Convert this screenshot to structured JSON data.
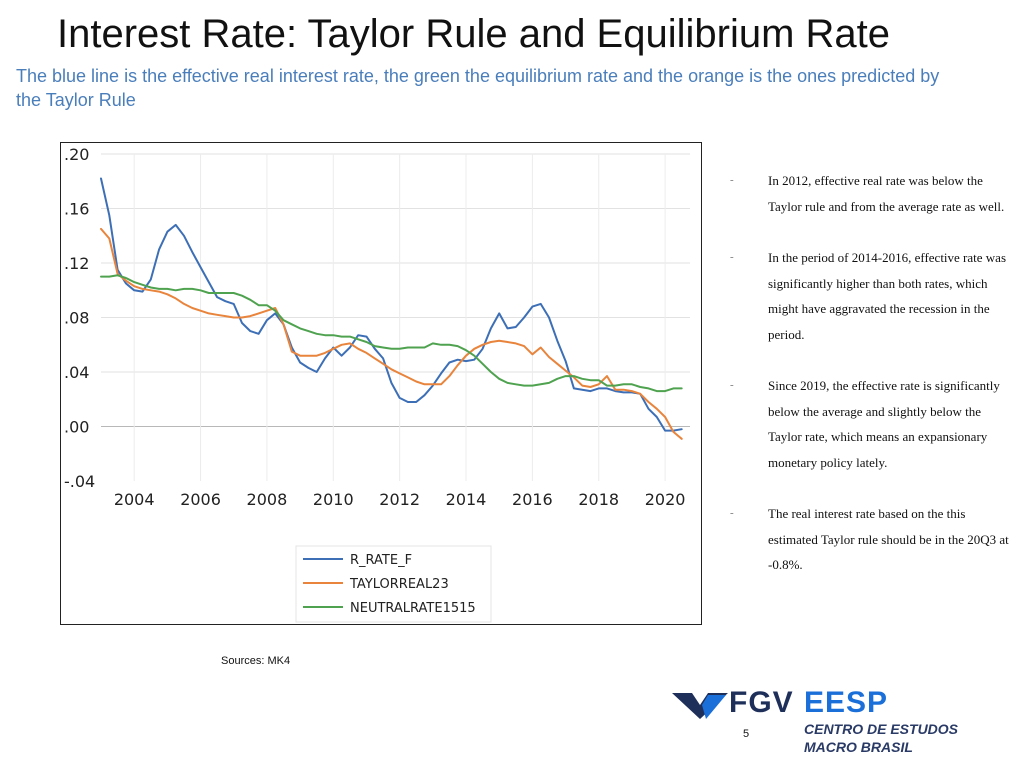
{
  "slide": {
    "title": "Interest Rate: Taylor Rule and Equilibrium Rate",
    "subtitle": "The blue line is the effective real interest rate, the green the equilibrium rate and the orange is the ones predicted by the Taylor Rule",
    "sources": "Sources: MK4",
    "page_number": "5"
  },
  "bullets": [
    {
      "marker": "-",
      "text": "In 2012, effective real rate was below the Taylor rule and from the average rate as well."
    },
    {
      "marker": "-",
      "text": "In the period of 2014-2016, effective rate was significantly higher than both rates, which might have aggravated the recession in the period."
    },
    {
      "marker": "-",
      "text": "Since 2019, the effective rate is significantly below the average and slightly below the Taylor rate, which means an expansionary monetary policy lately."
    },
    {
      "marker": "-",
      "text": "The real interest rate based on the this estimated Taylor rule should be in the 20Q3 at -0.8%."
    }
  ],
  "logo": {
    "brand": "FGV",
    "school": "EESP",
    "line1": "CENTRO DE ESTUDOS",
    "line2": "MACRO BRASIL",
    "colors": {
      "dark": "#1e2f5a",
      "blue": "#1b6fd8"
    }
  },
  "chart_data": {
    "type": "line",
    "title": "",
    "xlabel": "",
    "ylabel": "",
    "xlim": [
      2003.0,
      2020.75
    ],
    "ylim": [
      -0.04,
      0.2
    ],
    "x_ticks": [
      2004,
      2006,
      2008,
      2010,
      2012,
      2014,
      2016,
      2018,
      2020
    ],
    "x_tick_labels": [
      "2004",
      "2006",
      "2008",
      "2010",
      "2012",
      "2014",
      "2016",
      "2018",
      "2020"
    ],
    "y_ticks": [
      0.2,
      0.16,
      0.12,
      0.08,
      0.04,
      0.0,
      -0.04
    ],
    "y_tick_labels": [
      ".20",
      ".16",
      ".12",
      ".08",
      ".04",
      ".00",
      "-.04"
    ],
    "grid": true,
    "legend_position": "bottom-left",
    "series": [
      {
        "name": "R_RATE_F",
        "color": "#3d6fb6",
        "x": [
          2003.0,
          2003.25,
          2003.5,
          2003.75,
          2004.0,
          2004.25,
          2004.5,
          2004.75,
          2005.0,
          2005.25,
          2005.5,
          2005.75,
          2006.0,
          2006.25,
          2006.5,
          2006.75,
          2007.0,
          2007.25,
          2007.5,
          2007.75,
          2008.0,
          2008.25,
          2008.5,
          2008.75,
          2009.0,
          2009.25,
          2009.5,
          2009.75,
          2010.0,
          2010.25,
          2010.5,
          2010.75,
          2011.0,
          2011.25,
          2011.5,
          2011.75,
          2012.0,
          2012.25,
          2012.5,
          2012.75,
          2013.0,
          2013.25,
          2013.5,
          2013.75,
          2014.0,
          2014.25,
          2014.5,
          2014.75,
          2015.0,
          2015.25,
          2015.5,
          2015.75,
          2016.0,
          2016.25,
          2016.5,
          2016.75,
          2017.0,
          2017.25,
          2017.5,
          2017.75,
          2018.0,
          2018.25,
          2018.5,
          2018.75,
          2019.0,
          2019.25,
          2019.5,
          2019.75,
          2020.0,
          2020.25,
          2020.5
        ],
        "values": [
          0.182,
          0.155,
          0.115,
          0.105,
          0.1,
          0.099,
          0.108,
          0.13,
          0.143,
          0.148,
          0.14,
          0.128,
          0.117,
          0.106,
          0.095,
          0.092,
          0.09,
          0.076,
          0.07,
          0.068,
          0.078,
          0.083,
          0.075,
          0.058,
          0.047,
          0.043,
          0.04,
          0.05,
          0.058,
          0.052,
          0.058,
          0.067,
          0.066,
          0.057,
          0.05,
          0.032,
          0.021,
          0.018,
          0.018,
          0.023,
          0.03,
          0.039,
          0.047,
          0.049,
          0.048,
          0.049,
          0.057,
          0.072,
          0.083,
          0.072,
          0.073,
          0.08,
          0.088,
          0.09,
          0.08,
          0.063,
          0.048,
          0.028,
          0.027,
          0.026,
          0.028,
          0.028,
          0.026,
          0.025,
          0.025,
          0.024,
          0.013,
          0.007,
          -0.003,
          -0.003,
          -0.002
        ]
      },
      {
        "name": "TAYLORREAL23",
        "color": "#e8843c",
        "x": [
          2003.0,
          2003.25,
          2003.5,
          2003.75,
          2004.0,
          2004.25,
          2004.5,
          2004.75,
          2005.0,
          2005.25,
          2005.5,
          2005.75,
          2006.0,
          2006.25,
          2006.5,
          2006.75,
          2007.0,
          2007.25,
          2007.5,
          2007.75,
          2008.0,
          2008.25,
          2008.5,
          2008.75,
          2009.0,
          2009.25,
          2009.5,
          2009.75,
          2010.0,
          2010.25,
          2010.5,
          2010.75,
          2011.0,
          2011.25,
          2011.5,
          2011.75,
          2012.0,
          2012.25,
          2012.5,
          2012.75,
          2013.0,
          2013.25,
          2013.5,
          2013.75,
          2014.0,
          2014.25,
          2014.5,
          2014.75,
          2015.0,
          2015.25,
          2015.5,
          2015.75,
          2016.0,
          2016.25,
          2016.5,
          2016.75,
          2017.0,
          2017.25,
          2017.5,
          2017.75,
          2018.0,
          2018.25,
          2018.5,
          2018.75,
          2019.0,
          2019.25,
          2019.5,
          2019.75,
          2020.0,
          2020.25,
          2020.5
        ],
        "values": [
          0.145,
          0.138,
          0.112,
          0.107,
          0.103,
          0.101,
          0.1,
          0.099,
          0.097,
          0.094,
          0.09,
          0.087,
          0.085,
          0.083,
          0.082,
          0.081,
          0.08,
          0.08,
          0.081,
          0.083,
          0.085,
          0.087,
          0.075,
          0.055,
          0.052,
          0.052,
          0.052,
          0.054,
          0.057,
          0.06,
          0.061,
          0.057,
          0.054,
          0.05,
          0.046,
          0.042,
          0.039,
          0.036,
          0.033,
          0.031,
          0.031,
          0.031,
          0.037,
          0.045,
          0.052,
          0.057,
          0.06,
          0.062,
          0.063,
          0.062,
          0.061,
          0.059,
          0.053,
          0.058,
          0.051,
          0.046,
          0.041,
          0.036,
          0.03,
          0.029,
          0.031,
          0.037,
          0.027,
          0.027,
          0.026,
          0.024,
          0.018,
          0.013,
          0.007,
          -0.004,
          -0.009
        ]
      },
      {
        "name": "NEUTRALRATE1515",
        "color": "#4fa24f",
        "x": [
          2003.0,
          2003.25,
          2003.5,
          2003.75,
          2004.0,
          2004.25,
          2004.5,
          2004.75,
          2005.0,
          2005.25,
          2005.5,
          2005.75,
          2006.0,
          2006.25,
          2006.5,
          2006.75,
          2007.0,
          2007.25,
          2007.5,
          2007.75,
          2008.0,
          2008.25,
          2008.5,
          2008.75,
          2009.0,
          2009.25,
          2009.5,
          2009.75,
          2010.0,
          2010.25,
          2010.5,
          2010.75,
          2011.0,
          2011.25,
          2011.5,
          2011.75,
          2012.0,
          2012.25,
          2012.5,
          2012.75,
          2013.0,
          2013.25,
          2013.5,
          2013.75,
          2014.0,
          2014.25,
          2014.5,
          2014.75,
          2015.0,
          2015.25,
          2015.5,
          2015.75,
          2016.0,
          2016.25,
          2016.5,
          2016.75,
          2017.0,
          2017.25,
          2017.5,
          2017.75,
          2018.0,
          2018.25,
          2018.5,
          2018.75,
          2019.0,
          2019.25,
          2019.5,
          2019.75,
          2020.0,
          2020.25,
          2020.5
        ],
        "values": [
          0.11,
          0.11,
          0.111,
          0.109,
          0.106,
          0.104,
          0.102,
          0.101,
          0.101,
          0.1,
          0.101,
          0.101,
          0.1,
          0.098,
          0.098,
          0.098,
          0.098,
          0.096,
          0.093,
          0.089,
          0.089,
          0.085,
          0.078,
          0.075,
          0.072,
          0.07,
          0.068,
          0.067,
          0.067,
          0.066,
          0.066,
          0.064,
          0.062,
          0.059,
          0.058,
          0.057,
          0.057,
          0.058,
          0.058,
          0.058,
          0.061,
          0.06,
          0.06,
          0.059,
          0.056,
          0.052,
          0.046,
          0.04,
          0.035,
          0.032,
          0.031,
          0.03,
          0.03,
          0.031,
          0.032,
          0.035,
          0.037,
          0.037,
          0.035,
          0.034,
          0.034,
          0.03,
          0.03,
          0.031,
          0.031,
          0.029,
          0.028,
          0.026,
          0.026,
          0.028,
          0.028
        ]
      }
    ]
  }
}
